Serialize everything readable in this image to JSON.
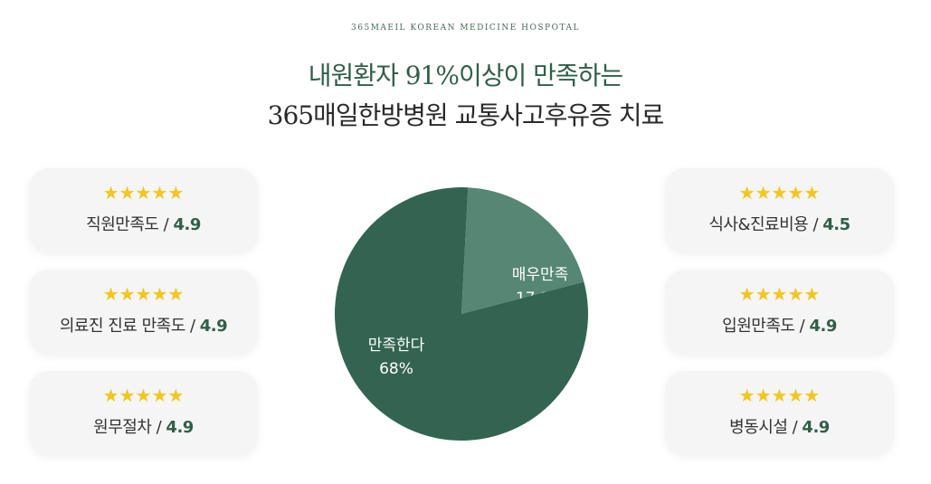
{
  "header": {
    "eyebrow": "365MAEIL KOREAN MEDICINE HOSPOTAL",
    "title_line1": "내원환자 91%이상이 만족하는",
    "title_line2": "365매일한방병원 교통사고후유증 치료"
  },
  "ratings_left": [
    {
      "stars": "★★★★★",
      "label": "직원만족도 / ",
      "score": "4.9"
    },
    {
      "stars": "★★★★★",
      "label": "의료진 진료 만족도 / ",
      "score": "4.9"
    },
    {
      "stars": "★★★★★",
      "label": "원무절차 / ",
      "score": "4.9"
    }
  ],
  "ratings_right": [
    {
      "stars": "★★★★★",
      "label": "식사&진료비용 / ",
      "score": "4.5"
    },
    {
      "stars": "★★★★★",
      "label": "입원만족도 / ",
      "score": "4.9"
    },
    {
      "stars": "★★★★★",
      "label": "병동시설 / ",
      "score": "4.9"
    }
  ],
  "colors": {
    "accent": "#2e6048",
    "star": "#f5c518",
    "slice_dark": "#336452",
    "slice_light": "#568674"
  },
  "chart_data": {
    "type": "pie",
    "slices": [
      {
        "label": "매우만족",
        "value": 17.1,
        "display": "17.1%",
        "color": "#568674"
      },
      {
        "label": "만족한다",
        "value": 68,
        "display": "68%",
        "color": "#336452"
      }
    ]
  }
}
